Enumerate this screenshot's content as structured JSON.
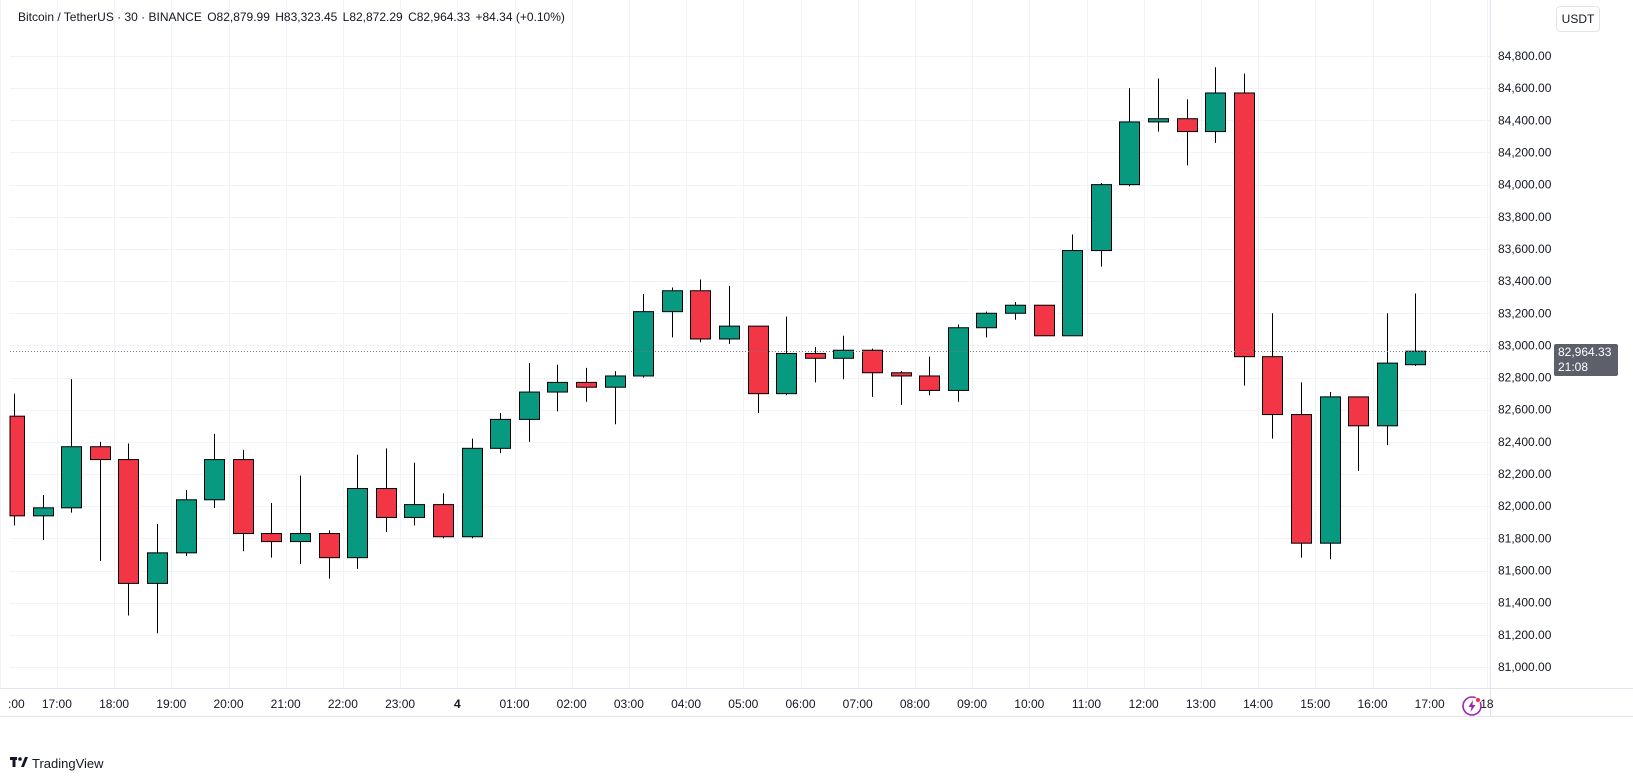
{
  "legend": {
    "symbol": "Bitcoin / TetherUS · 30 · BINANCE",
    "open": "O82,879.99",
    "high": "H83,323.45",
    "low": "L82,872.29",
    "close": "C82,964.33",
    "change": "+84.34 (+0.10%)"
  },
  "currency_label": "USDT",
  "last_price": {
    "value": "82,964.33",
    "countdown": "21:08"
  },
  "watermark": "TradingView",
  "colors": {
    "up": "#089981",
    "down": "#f23645",
    "grid": "#f0f3fa",
    "axis_text": "#131722"
  },
  "icons": {
    "replay": "lightning-bolt-icon",
    "logo": "tradingview-logo-icon"
  },
  "chart_data": {
    "type": "candlestick",
    "interval": "30",
    "ylim": [
      80900,
      84900
    ],
    "y_ticks": [
      81000,
      81200,
      81400,
      81600,
      81800,
      82000,
      82200,
      82400,
      82600,
      82800,
      83000,
      83200,
      83400,
      83600,
      83800,
      84000,
      84200,
      84400,
      84600,
      84800
    ],
    "y_tick_labels": [
      "81,000.00",
      "81,200.00",
      "81,400.00",
      "81,600.00",
      "81,800.00",
      "82,000.00",
      "82,200.00",
      "82,400.00",
      "82,600.00",
      "82,800.00",
      "83,000.00",
      "83,200.00",
      "83,400.00",
      "83,600.00",
      "83,800.00",
      "84,000.00",
      "84,200.00",
      "84,400.00",
      "84,600.00",
      "84,800.00"
    ],
    "x_ticks": [
      {
        "label": ":00",
        "index": -0.5
      },
      {
        "label": "17:00",
        "index": 1.5
      },
      {
        "label": "18:00",
        "index": 3.5
      },
      {
        "label": "19:00",
        "index": 5.5
      },
      {
        "label": "20:00",
        "index": 7.5
      },
      {
        "label": "21:00",
        "index": 9.5
      },
      {
        "label": "22:00",
        "index": 11.5
      },
      {
        "label": "23:00",
        "index": 13.5
      },
      {
        "label": "4",
        "index": 15.5
      },
      {
        "label": "01:00",
        "index": 17.5
      },
      {
        "label": "02:00",
        "index": 19.5
      },
      {
        "label": "03:00",
        "index": 21.5
      },
      {
        "label": "04:00",
        "index": 23.5
      },
      {
        "label": "05:00",
        "index": 25.5
      },
      {
        "label": "06:00",
        "index": 27.5
      },
      {
        "label": "07:00",
        "index": 29.5
      },
      {
        "label": "08:00",
        "index": 31.5
      },
      {
        "label": "09:00",
        "index": 33.5
      },
      {
        "label": "10:00",
        "index": 35.5
      },
      {
        "label": "11:00",
        "index": 37.5
      },
      {
        "label": "12:00",
        "index": 39.5
      },
      {
        "label": "13:00",
        "index": 41.5
      },
      {
        "label": "14:00",
        "index": 43.5
      },
      {
        "label": "15:00",
        "index": 45.5
      },
      {
        "label": "16:00",
        "index": 47.5
      },
      {
        "label": "17:00",
        "index": 49.5
      },
      {
        "label": "18",
        "index": 51.5
      }
    ],
    "candles": [
      {
        "o": 82560,
        "h": 82700,
        "l": 81880,
        "c": 81940
      },
      {
        "o": 81940,
        "h": 82070,
        "l": 81790,
        "c": 81990
      },
      {
        "o": 81990,
        "h": 82790,
        "l": 81960,
        "c": 82370
      },
      {
        "o": 82370,
        "h": 82400,
        "l": 81660,
        "c": 82290
      },
      {
        "o": 82290,
        "h": 82390,
        "l": 81320,
        "c": 81520
      },
      {
        "o": 81520,
        "h": 81890,
        "l": 81210,
        "c": 81710
      },
      {
        "o": 81710,
        "h": 82100,
        "l": 81690,
        "c": 82040
      },
      {
        "o": 82040,
        "h": 82450,
        "l": 81990,
        "c": 82290
      },
      {
        "o": 82290,
        "h": 82350,
        "l": 81720,
        "c": 81830
      },
      {
        "o": 81830,
        "h": 82020,
        "l": 81680,
        "c": 81780
      },
      {
        "o": 81780,
        "h": 82190,
        "l": 81640,
        "c": 81830
      },
      {
        "o": 81830,
        "h": 81850,
        "l": 81550,
        "c": 81680
      },
      {
        "o": 81680,
        "h": 82320,
        "l": 81610,
        "c": 82110
      },
      {
        "o": 82110,
        "h": 82360,
        "l": 81840,
        "c": 81930
      },
      {
        "o": 81930,
        "h": 82270,
        "l": 81880,
        "c": 82010
      },
      {
        "o": 82010,
        "h": 82080,
        "l": 81800,
        "c": 81810
      },
      {
        "o": 81810,
        "h": 82420,
        "l": 81800,
        "c": 82360
      },
      {
        "o": 82360,
        "h": 82580,
        "l": 82330,
        "c": 82540
      },
      {
        "o": 82540,
        "h": 82890,
        "l": 82400,
        "c": 82710
      },
      {
        "o": 82710,
        "h": 82880,
        "l": 82590,
        "c": 82770
      },
      {
        "o": 82770,
        "h": 82860,
        "l": 82650,
        "c": 82740
      },
      {
        "o": 82740,
        "h": 82840,
        "l": 82510,
        "c": 82810
      },
      {
        "o": 82810,
        "h": 83320,
        "l": 82800,
        "c": 83210
      },
      {
        "o": 83210,
        "h": 83360,
        "l": 83050,
        "c": 83340
      },
      {
        "o": 83340,
        "h": 83410,
        "l": 83020,
        "c": 83040
      },
      {
        "o": 83040,
        "h": 83370,
        "l": 83010,
        "c": 83120
      },
      {
        "o": 83120,
        "h": 83120,
        "l": 82580,
        "c": 82700
      },
      {
        "o": 82700,
        "h": 83180,
        "l": 82690,
        "c": 82950
      },
      {
        "o": 82950,
        "h": 82990,
        "l": 82770,
        "c": 82920
      },
      {
        "o": 82920,
        "h": 83060,
        "l": 82790,
        "c": 82970
      },
      {
        "o": 82970,
        "h": 82980,
        "l": 82680,
        "c": 82830
      },
      {
        "o": 82830,
        "h": 82840,
        "l": 82630,
        "c": 82810
      },
      {
        "o": 82810,
        "h": 82930,
        "l": 82690,
        "c": 82720
      },
      {
        "o": 82720,
        "h": 83130,
        "l": 82650,
        "c": 83110
      },
      {
        "o": 83110,
        "h": 83210,
        "l": 83050,
        "c": 83200
      },
      {
        "o": 83200,
        "h": 83270,
        "l": 83160,
        "c": 83250
      },
      {
        "o": 83250,
        "h": 83250,
        "l": 83060,
        "c": 83060
      },
      {
        "o": 83060,
        "h": 83690,
        "l": 83060,
        "c": 83590
      },
      {
        "o": 83590,
        "h": 84010,
        "l": 83490,
        "c": 84000
      },
      {
        "o": 84000,
        "h": 84600,
        "l": 83990,
        "c": 84390
      },
      {
        "o": 84390,
        "h": 84660,
        "l": 84330,
        "c": 84410
      },
      {
        "o": 84410,
        "h": 84530,
        "l": 84120,
        "c": 84330
      },
      {
        "o": 84330,
        "h": 84730,
        "l": 84260,
        "c": 84570
      },
      {
        "o": 84570,
        "h": 84690,
        "l": 82750,
        "c": 82930
      },
      {
        "o": 82930,
        "h": 83200,
        "l": 82420,
        "c": 82570
      },
      {
        "o": 82570,
        "h": 82770,
        "l": 81680,
        "c": 81770
      },
      {
        "o": 81770,
        "h": 82710,
        "l": 81670,
        "c": 82680
      },
      {
        "o": 82680,
        "h": 82680,
        "l": 82220,
        "c": 82500
      },
      {
        "o": 82500,
        "h": 83200,
        "l": 82380,
        "c": 82890
      },
      {
        "o": 82880,
        "h": 83323,
        "l": 82872,
        "c": 82964
      }
    ]
  }
}
